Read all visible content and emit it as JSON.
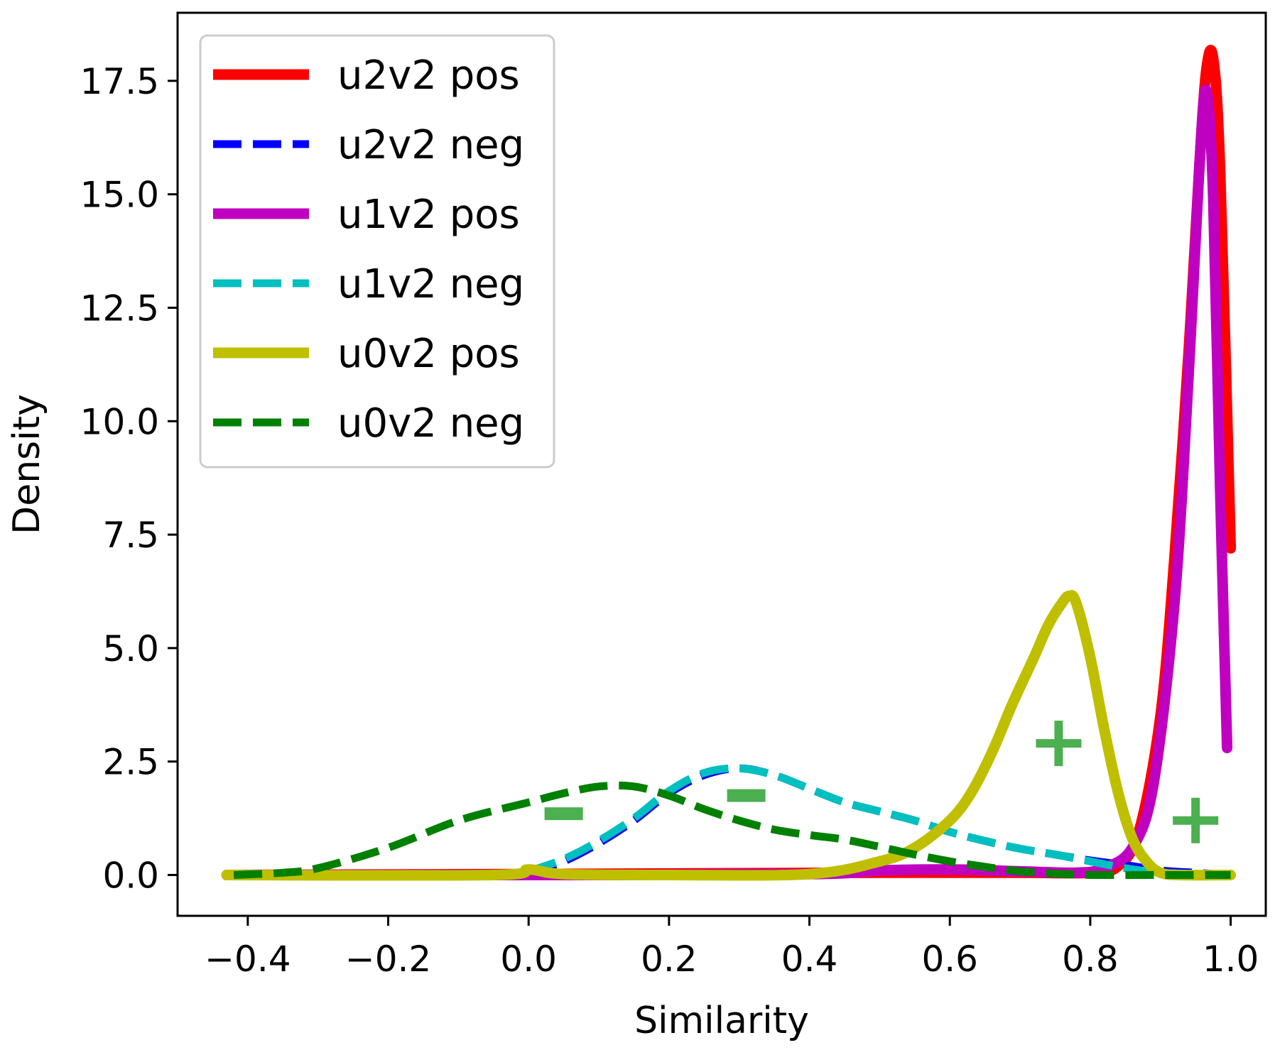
{
  "chart_data": {
    "type": "line",
    "title": "",
    "xlabel": "Similarity",
    "ylabel": "Density",
    "xlim": [
      -0.5,
      1.05
    ],
    "ylim": [
      -0.9,
      19.0
    ],
    "grid": false,
    "legend_position": "top-left",
    "xticks": [
      {
        "value": -0.4,
        "label": "−0.4"
      },
      {
        "value": -0.2,
        "label": "−0.2"
      },
      {
        "value": 0.0,
        "label": "0.0"
      },
      {
        "value": 0.2,
        "label": "0.2"
      },
      {
        "value": 0.4,
        "label": "0.4"
      },
      {
        "value": 0.6,
        "label": "0.6"
      },
      {
        "value": 0.8,
        "label": "0.8"
      },
      {
        "value": 1.0,
        "label": "1.0"
      }
    ],
    "yticks": [
      {
        "value": 0.0,
        "label": "0.0"
      },
      {
        "value": 2.5,
        "label": "2.5"
      },
      {
        "value": 5.0,
        "label": "5.0"
      },
      {
        "value": 7.5,
        "label": "7.5"
      },
      {
        "value": 10.0,
        "label": "10.0"
      },
      {
        "value": 12.5,
        "label": "12.5"
      },
      {
        "value": 15.0,
        "label": "15.0"
      },
      {
        "value": 17.5,
        "label": "17.5"
      }
    ],
    "series": [
      {
        "name": "u2v2 pos",
        "color": "#ff0000",
        "style": "solid",
        "x": [
          -0.43,
          0.0,
          0.5,
          0.7,
          0.8,
          0.84,
          0.87,
          0.9,
          0.92,
          0.94,
          0.955,
          0.965,
          0.975,
          0.985,
          1.0
        ],
        "y": [
          0.0,
          0.02,
          0.05,
          0.05,
          0.05,
          0.2,
          1.0,
          3.5,
          7.0,
          11.5,
          15.5,
          17.7,
          18.0,
          15.5,
          7.2
        ]
      },
      {
        "name": "u2v2 neg",
        "color": "#0000ff",
        "style": "dashed",
        "x": [
          0.0,
          0.05,
          0.1,
          0.15,
          0.2,
          0.25,
          0.3,
          0.35,
          0.4,
          0.45,
          0.5,
          0.55,
          0.6,
          0.65,
          0.7,
          0.75,
          0.8,
          0.85,
          0.9,
          0.95,
          0.98
        ],
        "y": [
          0.05,
          0.3,
          0.7,
          1.2,
          1.8,
          2.2,
          2.35,
          2.2,
          1.9,
          1.6,
          1.4,
          1.2,
          0.95,
          0.75,
          0.58,
          0.45,
          0.32,
          0.22,
          0.1,
          0.05,
          0.02
        ]
      },
      {
        "name": "u1v2 pos",
        "color": "#c000c0",
        "style": "solid",
        "x": [
          -0.43,
          0.0,
          0.4,
          0.5,
          0.6,
          0.7,
          0.78,
          0.82,
          0.86,
          0.89,
          0.92,
          0.94,
          0.955,
          0.965,
          0.975,
          0.985,
          0.995
        ],
        "y": [
          0.0,
          0.0,
          0.02,
          0.1,
          0.12,
          0.08,
          0.05,
          0.15,
          0.6,
          2.0,
          6.0,
          11.0,
          15.5,
          17.3,
          15.0,
          8.5,
          2.8
        ]
      },
      {
        "name": "u1v2 neg",
        "color": "#00bfbf",
        "style": "dashed",
        "x": [
          0.0,
          0.05,
          0.1,
          0.15,
          0.2,
          0.25,
          0.3,
          0.35,
          0.4,
          0.45,
          0.5,
          0.55,
          0.6,
          0.65,
          0.7,
          0.75,
          0.8,
          0.85,
          0.9,
          0.95,
          0.98
        ],
        "y": [
          0.08,
          0.35,
          0.75,
          1.25,
          1.85,
          2.25,
          2.35,
          2.2,
          1.9,
          1.6,
          1.4,
          1.2,
          0.95,
          0.75,
          0.58,
          0.45,
          0.3,
          0.15,
          0.05,
          0.02,
          0.0
        ]
      },
      {
        "name": "u0v2 pos",
        "color": "#bfbf00",
        "style": "solid",
        "x": [
          -0.43,
          -0.05,
          0.0,
          0.05,
          0.2,
          0.4,
          0.5,
          0.55,
          0.6,
          0.63,
          0.66,
          0.69,
          0.72,
          0.74,
          0.76,
          0.77,
          0.78,
          0.8,
          0.82,
          0.84,
          0.86,
          0.88,
          0.9,
          0.93,
          1.0
        ],
        "y": [
          0.0,
          0.0,
          0.12,
          0.02,
          0.0,
          0.02,
          0.3,
          0.6,
          1.2,
          1.8,
          2.7,
          3.8,
          4.8,
          5.5,
          6.0,
          6.15,
          6.0,
          4.8,
          3.2,
          1.8,
          0.8,
          0.3,
          0.05,
          0.0,
          0.0
        ]
      },
      {
        "name": "u0v2 neg",
        "color": "#008000",
        "style": "dashed",
        "x": [
          -0.42,
          -0.35,
          -0.3,
          -0.2,
          -0.1,
          0.0,
          0.05,
          0.1,
          0.15,
          0.2,
          0.25,
          0.3,
          0.35,
          0.4,
          0.45,
          0.5,
          0.55,
          0.6,
          0.65,
          0.7,
          0.75,
          0.8,
          0.9,
          1.0
        ],
        "y": [
          0.0,
          0.05,
          0.15,
          0.6,
          1.2,
          1.6,
          1.8,
          1.95,
          1.95,
          1.75,
          1.45,
          1.2,
          1.0,
          0.88,
          0.78,
          0.62,
          0.45,
          0.3,
          0.18,
          0.08,
          0.03,
          0.0,
          0.0,
          0.0
        ]
      }
    ],
    "annotations": [
      {
        "text": "−",
        "x": 0.05,
        "y": 1.35,
        "color": "#4caf50"
      },
      {
        "text": "−",
        "x": 0.31,
        "y": 1.75,
        "color": "#4caf50"
      },
      {
        "text": "+",
        "x": 0.755,
        "y": 2.9,
        "color": "#4caf50"
      },
      {
        "text": "+",
        "x": 0.95,
        "y": 1.2,
        "color": "#4caf50"
      }
    ]
  }
}
